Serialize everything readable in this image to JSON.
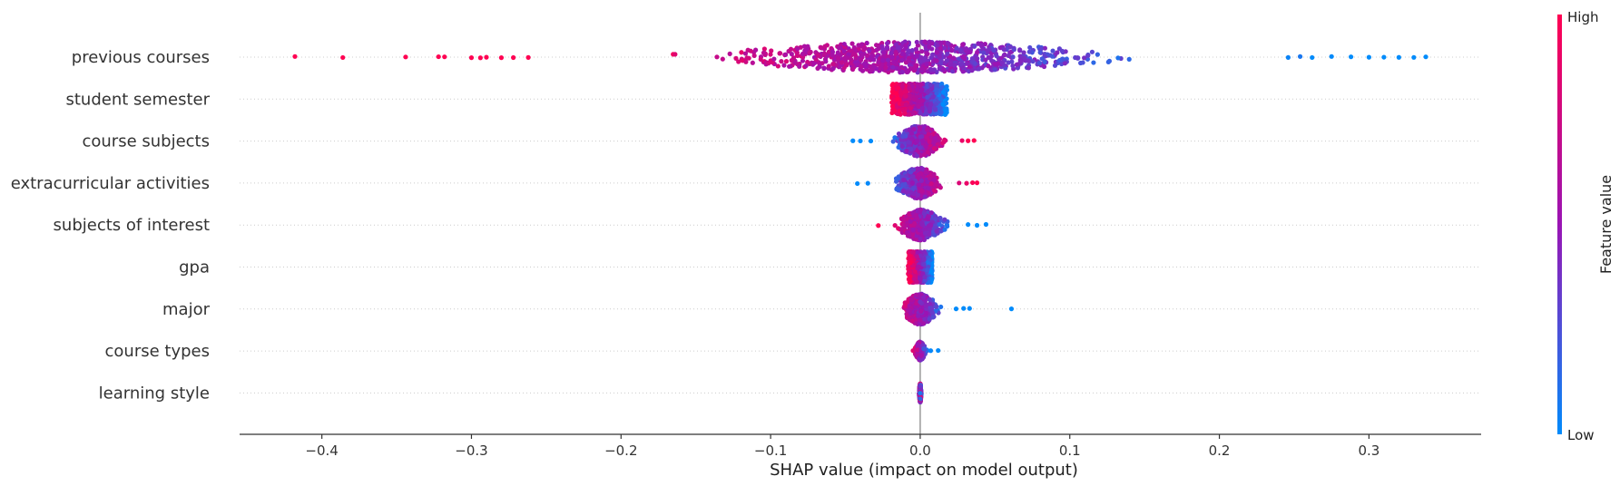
{
  "chart_data": {
    "type": "scatter",
    "subtype": "shap-beeswarm",
    "title": "",
    "xlabel": "SHAP value (impact on model output)",
    "ylabel": "",
    "xlim": [
      -0.455,
      0.375
    ],
    "x_ticks": [
      -0.4,
      -0.3,
      -0.2,
      -0.1,
      0.0,
      0.1,
      0.2,
      0.3
    ],
    "x_tick_labels": [
      "−0.4",
      "−0.3",
      "−0.2",
      "−0.1",
      "0.0",
      "0.1",
      "0.2",
      "0.3"
    ],
    "grid": false,
    "row_guides": "dotted",
    "zero_line": true,
    "colors": {
      "high": "#ff0052",
      "mid": "#9a14b4",
      "low": "#008bfb",
      "axis": "#333333",
      "zero_line": "#999999",
      "row_guide": "#cccccc"
    },
    "colorbar": {
      "title": "Feature value",
      "high_label": "High",
      "low_label": "Low"
    },
    "features": [
      {
        "name": "previous courses",
        "min": -0.418,
        "max": 0.34,
        "outliers": [
          -0.418,
          -0.386,
          -0.344,
          -0.322,
          -0.318,
          -0.3,
          -0.294,
          -0.29,
          -0.28,
          -0.272,
          -0.262,
          0.246,
          0.254,
          0.262,
          0.275,
          0.288,
          0.3,
          0.31,
          0.32,
          0.33,
          0.338
        ],
        "color_trend": "high-left"
      },
      {
        "name": "student semester",
        "min": -0.019,
        "max": 0.018,
        "outliers": [],
        "color_trend": "high-left"
      },
      {
        "name": "course subjects",
        "min": -0.045,
        "max": 0.036,
        "outliers": [
          -0.045,
          -0.04,
          -0.033,
          0.028,
          0.032,
          0.036
        ],
        "color_trend": "high-right"
      },
      {
        "name": "extracurricular activities",
        "min": -0.042,
        "max": 0.038,
        "outliers": [
          -0.042,
          -0.035,
          0.026,
          0.031,
          0.035,
          0.038
        ],
        "color_trend": "high-right"
      },
      {
        "name": "subjects of interest",
        "min": -0.028,
        "max": 0.044,
        "outliers": [
          -0.028,
          0.032,
          0.038,
          0.044
        ],
        "color_trend": "high-left"
      },
      {
        "name": "gpa",
        "min": -0.008,
        "max": 0.008,
        "outliers": [],
        "color_trend": "high-left"
      },
      {
        "name": "major",
        "min": -0.021,
        "max": 0.061,
        "outliers": [
          0.024,
          0.029,
          0.033,
          0.061
        ],
        "color_trend": "high-left"
      },
      {
        "name": "course types",
        "min": -0.006,
        "max": 0.012,
        "outliers": [
          0.007,
          0.012
        ],
        "color_trend": "high-left"
      },
      {
        "name": "learning style",
        "min": -0.001,
        "max": 0.001,
        "outliers": [],
        "color_trend": "mixed"
      }
    ]
  }
}
